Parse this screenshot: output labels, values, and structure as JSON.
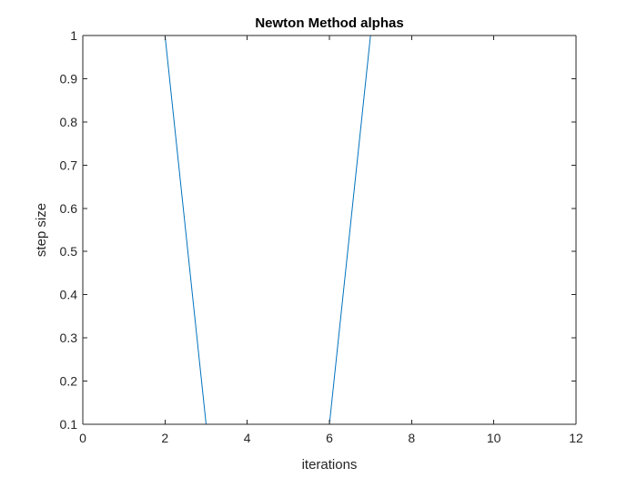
{
  "chart_data": {
    "type": "line",
    "title": "Newton Method alphas",
    "xlabel": "iterations",
    "ylabel": "step size",
    "xlim": [
      0,
      12
    ],
    "ylim": [
      0.1,
      1
    ],
    "xticks": [
      "0",
      "2",
      "4",
      "6",
      "8",
      "10",
      "12"
    ],
    "yticks": [
      "0.1",
      "0.2",
      "0.3",
      "0.4",
      "0.5",
      "0.6",
      "0.7",
      "0.8",
      "0.9",
      "1"
    ],
    "grid": false,
    "x": [
      1,
      2,
      3,
      4,
      5,
      6,
      7,
      8,
      9,
      10,
      11,
      12
    ],
    "series": [
      {
        "values": [
          1,
          1,
          0.1,
          0.1,
          0.1,
          0.1,
          1,
          1,
          1,
          1,
          1,
          1
        ],
        "color": "#0072BD"
      }
    ],
    "colors": {
      "axis": "#262626",
      "background": "#ffffff"
    }
  }
}
